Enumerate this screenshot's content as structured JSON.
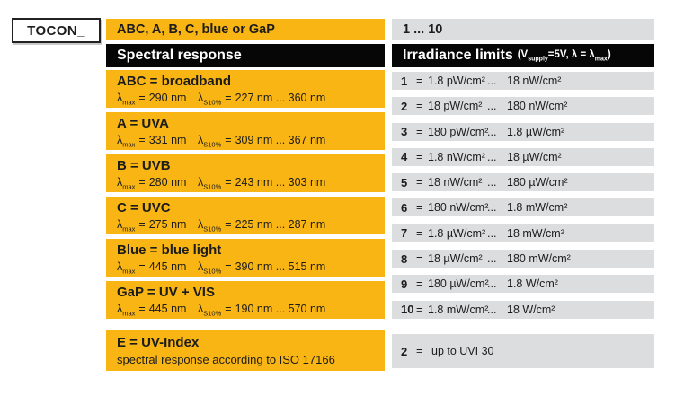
{
  "colors": {
    "amber": "#F9B513",
    "row-gray": "#DCDDDE",
    "bar-black": "#060606",
    "text": "#1C1C1C"
  },
  "header": {
    "model_label": "TOCON_",
    "spectral_options": "ABC, A, B, C, blue or GaP",
    "irradiance_options": "1 ... 10",
    "spectral_header": "Spectral response",
    "irradiance_header": {
      "main": "Irradiance limits",
      "paren_open": "(V",
      "supply_sub": "supply",
      "mid": "=5V, λ = λ",
      "max_sub": "max",
      "paren_close": ")"
    }
  },
  "labels": {
    "lambda": "λ",
    "max_sub": "max",
    "s10_sub": "S10%",
    "equals": "=",
    "dots": "..."
  },
  "spectral_rows": [
    {
      "title": "ABC = broadband",
      "max_value": "290 nm",
      "s10_value": "227 nm ... 360 nm"
    },
    {
      "title": "A = UVA",
      "max_value": "331 nm",
      "s10_value": "309 nm ... 367 nm"
    },
    {
      "title": "B = UVB",
      "max_value": "280 nm",
      "s10_value": "243 nm ... 303 nm"
    },
    {
      "title": "C = UVC",
      "max_value": "275 nm",
      "s10_value": "225 nm ... 287 nm"
    },
    {
      "title": "Blue = blue light",
      "max_value": "445 nm",
      "s10_value": "390 nm ... 515 nm"
    },
    {
      "title": "GaP = UV + VIS",
      "max_value": "445 nm",
      "s10_value": "190 nm ... 570 nm"
    }
  ],
  "irradiance_rows": [
    {
      "num": "1",
      "from": "1.8 pW/cm²",
      "to": "18 nW/cm²"
    },
    {
      "num": "2",
      "from": "18 pW/cm²",
      "to": "180 nW/cm²"
    },
    {
      "num": "3",
      "from": "180 pW/cm²",
      "to": "1.8 µW/cm²"
    },
    {
      "num": "4",
      "from": "1.8 nW/cm²",
      "to": "18 µW/cm²"
    },
    {
      "num": "5",
      "from": "18 nW/cm²",
      "to": "180 µW/cm²"
    },
    {
      "num": "6",
      "from": "180 nW/cm²",
      "to": "1.8 mW/cm²"
    },
    {
      "num": "7",
      "from": "1.8 µW/cm²",
      "to": "18 mW/cm²"
    },
    {
      "num": "8",
      "from": "18 µW/cm²",
      "to": "180 mW/cm²"
    },
    {
      "num": "9",
      "from": "180 µW/cm²",
      "to": "1.8 W/cm²"
    },
    {
      "num": "10",
      "from": "1.8 mW/cm²",
      "to": "18 W/cm²"
    }
  ],
  "uv_index": {
    "title": "E = UV-Index",
    "subtitle": "spectral response according to ISO 17166"
  },
  "uvi_limit": {
    "num": "2",
    "text": "up to UVI 30"
  }
}
